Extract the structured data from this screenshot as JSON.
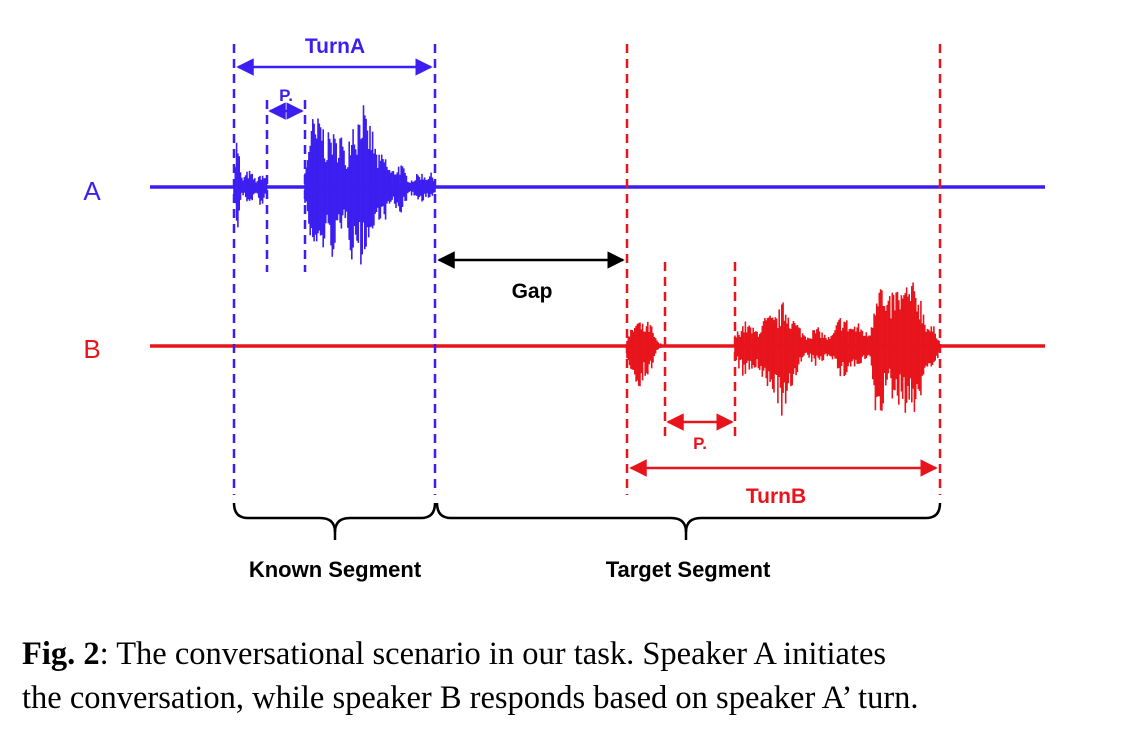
{
  "diagram": {
    "speaker_a": {
      "label": "A",
      "color": "#3d1ef0"
    },
    "speaker_b": {
      "label": "B",
      "color": "#e8141c"
    },
    "gap_color": "#000000",
    "labels": {
      "turn_a": "TurnA",
      "turn_b": "TurnB",
      "pause_a": "P.",
      "pause_b": "P.",
      "gap": "Gap",
      "known_segment": "Known Segment",
      "target_segment": "Target Segment"
    }
  },
  "caption": {
    "label": "Fig. 2",
    "line1": ": The conversational scenario in our task.  Speaker A initiates",
    "line2": "the conversation, while speaker B responds based on speaker A’ turn."
  }
}
